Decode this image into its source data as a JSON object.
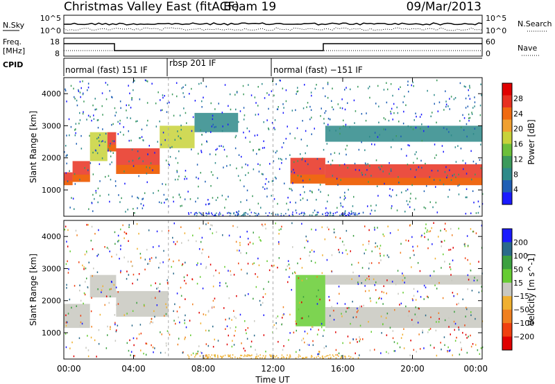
{
  "header": {
    "title": "Christmas Valley East (fitACF)",
    "beam": "Beam 19",
    "date": "09/Mar/2013"
  },
  "nsky_panel": {
    "left_label": "N.Sky",
    "left_ticks": [
      "10^5",
      "10^0"
    ],
    "right_label": "N.Search",
    "right_ticks": [
      "10^5",
      "10^0"
    ]
  },
  "freq_panel": {
    "left_label_line1": "Freq.",
    "left_label_line2": "[MHz]",
    "left_ticks": [
      "18",
      "8"
    ],
    "right_label": "Nave",
    "right_ticks": [
      "60",
      "0"
    ]
  },
  "cpid": {
    "label": "CPID",
    "segments": [
      {
        "label": "normal (fast) 151 IF",
        "start_hour": 0,
        "end_hour": 6
      },
      {
        "label": "rbsp 201 IF",
        "start_hour": 6,
        "end_hour": 12
      },
      {
        "label": "normal (fast) −151 IF",
        "start_hour": 12,
        "end_hour": 24
      }
    ]
  },
  "chart_data": [
    {
      "type": "heatmap",
      "name": "power_panel",
      "ylabel": "Slant Range [km]",
      "yticks": [
        "1000",
        "2000",
        "3000",
        "4000"
      ],
      "ylim": [
        180,
        4500
      ],
      "colorbar": {
        "label": "Power [dB]",
        "ticks": [
          "4",
          "8",
          "12",
          "16",
          "20",
          "24",
          "28"
        ],
        "colors": [
          "#1a1aff",
          "#1f5fb5",
          "#2e8a8a",
          "#3c9a5c",
          "#6cbf3a",
          "#c8d23a",
          "#f0a030",
          "#f06a10",
          "#e83020",
          "#e00000"
        ]
      },
      "bands": [
        {
          "start_hour": 0.0,
          "end_hour": 0.5,
          "low_km": 1150,
          "high_km": 1550,
          "level": "high"
        },
        {
          "start_hour": 0.5,
          "end_hour": 1.5,
          "low_km": 1250,
          "high_km": 1900,
          "level": "high"
        },
        {
          "start_hour": 1.5,
          "end_hour": 2.5,
          "low_km": 1900,
          "high_km": 2800,
          "level": "mid"
        },
        {
          "start_hour": 2.5,
          "end_hour": 3.0,
          "low_km": 2200,
          "high_km": 2800,
          "level": "high"
        },
        {
          "start_hour": 3.0,
          "end_hour": 5.5,
          "low_km": 1500,
          "high_km": 2300,
          "level": "high"
        },
        {
          "start_hour": 5.5,
          "end_hour": 7.5,
          "low_km": 2300,
          "high_km": 3000,
          "level": "mid"
        },
        {
          "start_hour": 7.5,
          "end_hour": 10.0,
          "low_km": 2800,
          "high_km": 3400,
          "level": "low"
        },
        {
          "start_hour": 13.0,
          "end_hour": 15.0,
          "low_km": 1200,
          "high_km": 2000,
          "level": "high"
        },
        {
          "start_hour": 15.0,
          "end_hour": 24.0,
          "low_km": 1150,
          "high_km": 1800,
          "level": "high"
        },
        {
          "start_hour": 15.0,
          "end_hour": 24.0,
          "low_km": 2500,
          "high_km": 3000,
          "level": "low"
        }
      ]
    },
    {
      "type": "heatmap",
      "name": "velocity_panel",
      "ylabel": "Slant Range [km]",
      "yticks": [
        "1000",
        "2000",
        "3000",
        "4000"
      ],
      "ylim": [
        180,
        4500
      ],
      "colorbar": {
        "label": "Velocity [m s^-1]",
        "ticks": [
          "200",
          "100",
          "50",
          "15",
          "−15",
          "−50",
          "−100",
          "−200"
        ],
        "colors": [
          "#1a1aff",
          "#2a6a8a",
          "#3ca040",
          "#66cc33",
          "#c8c8c0",
          "#f0b030",
          "#f08020",
          "#f04010",
          "#e00000"
        ]
      },
      "bands": [
        {
          "start_hour": 0.0,
          "end_hour": 1.5,
          "low_km": 1150,
          "high_km": 1900,
          "level": "ground"
        },
        {
          "start_hour": 1.5,
          "end_hour": 3.0,
          "low_km": 2100,
          "high_km": 2800,
          "level": "ground"
        },
        {
          "start_hour": 3.0,
          "end_hour": 6.0,
          "low_km": 1500,
          "high_km": 2300,
          "level": "ground"
        },
        {
          "start_hour": 13.3,
          "end_hour": 15.0,
          "low_km": 1200,
          "high_km": 2800,
          "level": "positive"
        },
        {
          "start_hour": 15.0,
          "end_hour": 24.0,
          "low_km": 1150,
          "high_km": 1800,
          "level": "ground"
        },
        {
          "start_hour": 15.0,
          "end_hour": 24.0,
          "low_km": 2500,
          "high_km": 2800,
          "level": "ground"
        }
      ]
    }
  ],
  "time_axis": {
    "label": "Time UT",
    "ticks": [
      "00:00",
      "04:00",
      "08:00",
      "12:00",
      "16:00",
      "20:00",
      "00:00"
    ]
  }
}
